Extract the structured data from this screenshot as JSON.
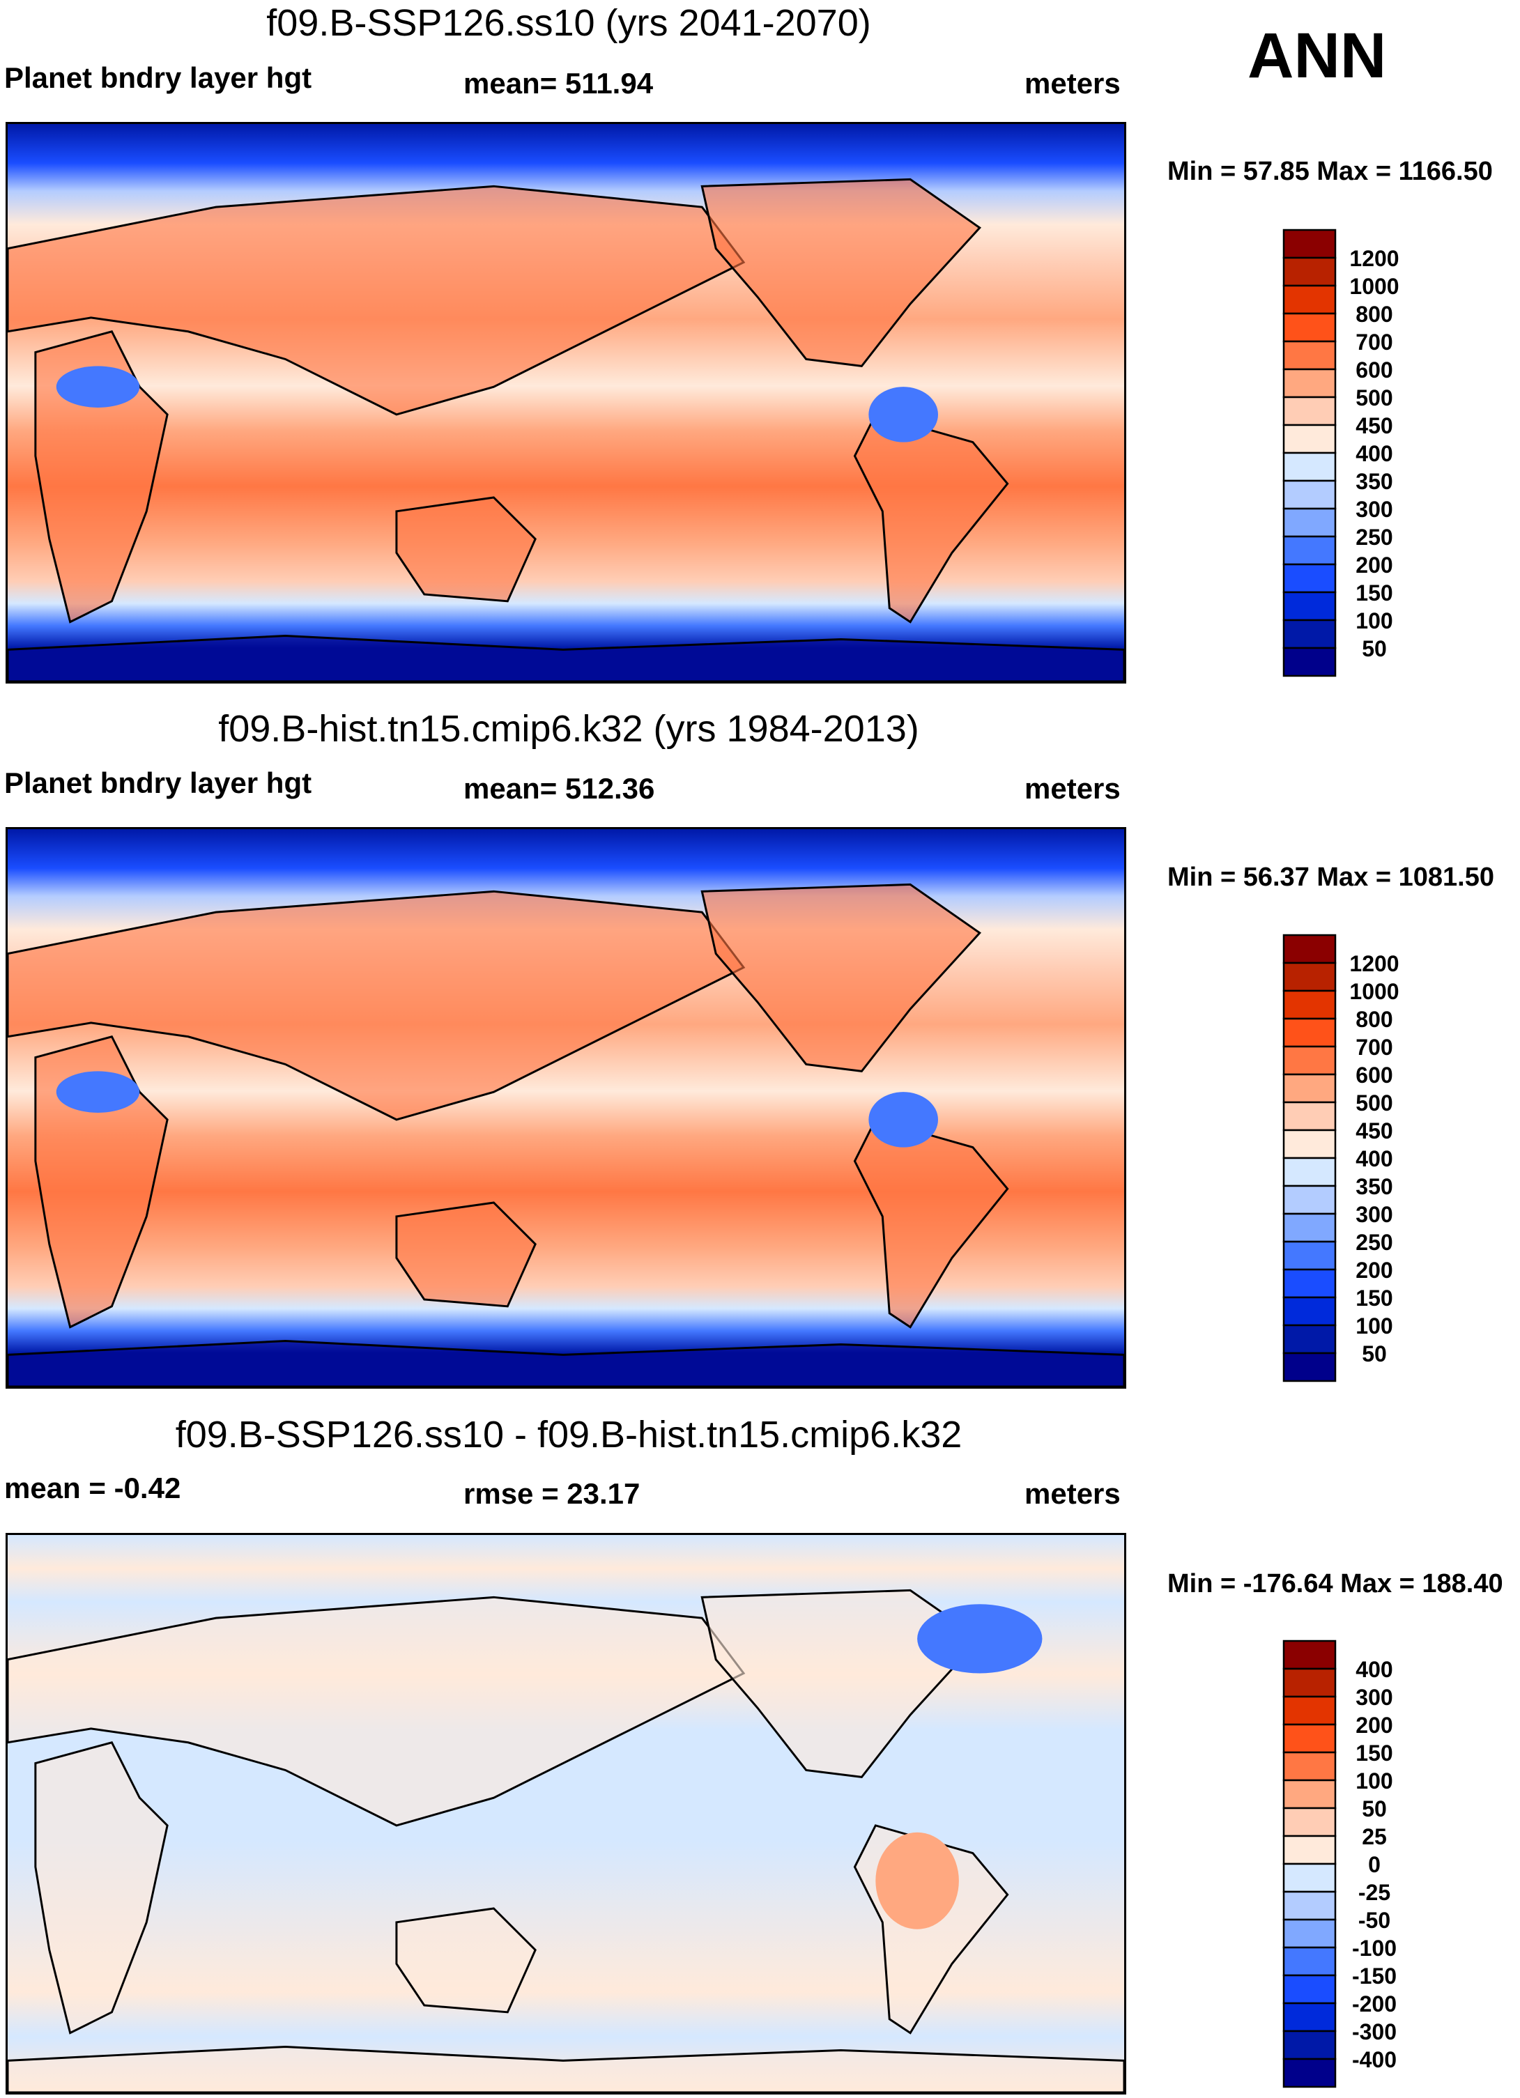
{
  "season": "ANN",
  "chart_data": [
    {
      "type": "heatmap",
      "title": "f09.B-SSP126.ss10 (yrs 2041-2070)",
      "left_label": "Planet bndry layer hgt",
      "center_label": "mean= 511.94",
      "units": "meters",
      "minmax": "Min =  57.85 Max = 1166.50",
      "min": 57.85,
      "max": 1166.5,
      "mean": 511.94,
      "levels": [
        "1200",
        "1000",
        "800",
        "700",
        "600",
        "500",
        "450",
        "400",
        "350",
        "300",
        "250",
        "200",
        "150",
        "100",
        "50"
      ]
    },
    {
      "type": "heatmap",
      "title": "f09.B-hist.tn15.cmip6.k32 (yrs 1984-2013)",
      "left_label": "Planet bndry layer hgt",
      "center_label": "mean= 512.36",
      "units": "meters",
      "minmax": "Min =  56.37 Max = 1081.50",
      "min": 56.37,
      "max": 1081.5,
      "mean": 512.36,
      "levels": [
        "1200",
        "1000",
        "800",
        "700",
        "600",
        "500",
        "450",
        "400",
        "350",
        "300",
        "250",
        "200",
        "150",
        "100",
        "50"
      ]
    },
    {
      "type": "heatmap",
      "title": "f09.B-SSP126.ss10 - f09.B-hist.tn15.cmip6.k32",
      "left_label": "mean =  -0.42",
      "center_label": "rmse =  23.17",
      "units": "meters",
      "minmax": "Min = -176.64 Max = 188.40",
      "min": -176.64,
      "max": 188.4,
      "mean": -0.42,
      "rmse": 23.17,
      "levels": [
        "400",
        "300",
        "200",
        "150",
        "100",
        "50",
        "25",
        "0",
        "-25",
        "-50",
        "-100",
        "-150",
        "-200",
        "-300",
        "-400"
      ]
    }
  ],
  "colors": [
    "#8b0000",
    "#b82200",
    "#e33400",
    "#ff5219",
    "#ff7744",
    "#ffa880",
    "#ffcdb5",
    "#ffeadb",
    "#d5e8ff",
    "#b3ccff",
    "#80a8ff",
    "#4478ff",
    "#1a4dff",
    "#002adb",
    "#0019a8",
    "#00008b"
  ]
}
